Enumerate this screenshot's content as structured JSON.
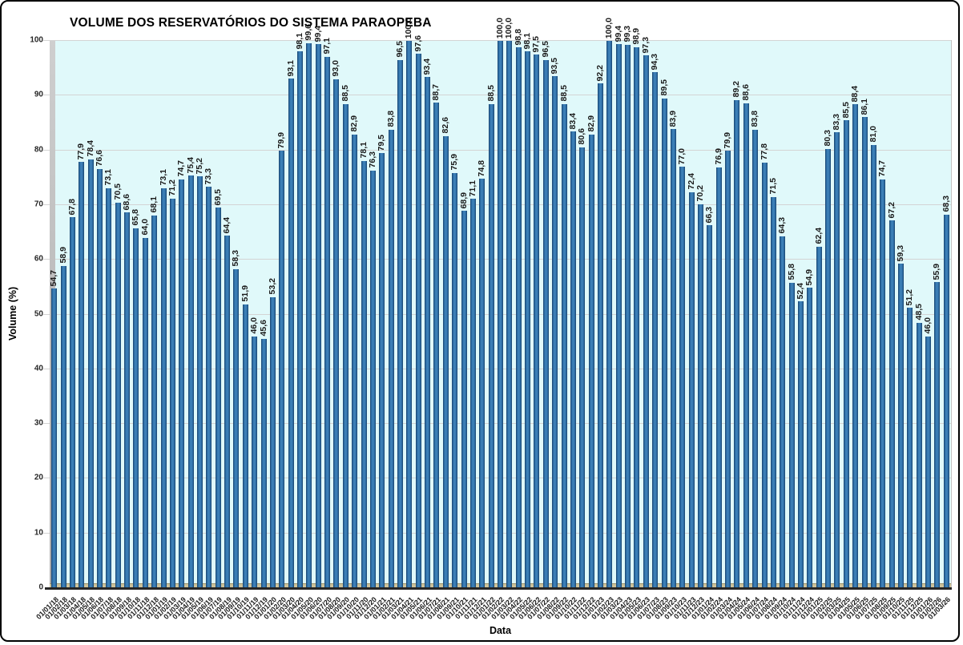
{
  "chart_data": {
    "type": "bar",
    "title": "VOLUME DOS RESERVATÓRIOS DO SISTEMA PARAOPEBA",
    "xlabel": "Data",
    "ylabel": "Volume (%)",
    "ylim": [
      0,
      100
    ],
    "y_ticks": [
      "0",
      "10",
      "20",
      "30",
      "40",
      "50",
      "60",
      "70",
      "80",
      "90",
      "100"
    ],
    "grid": "horizontal",
    "legend": "none",
    "decimal_separator": ",",
    "categories": [
      "01/01/18",
      "01/02/18",
      "01/03/18",
      "01/04/18",
      "01/05/18",
      "01/06/18",
      "01/07/18",
      "01/08/18",
      "01/09/18",
      "01/10/18",
      "01/11/18",
      "01/12/18",
      "01/01/19",
      "01/02/19",
      "01/03/19",
      "01/04/19",
      "01/05/19",
      "01/06/19",
      "01/07/19",
      "01/08/19",
      "01/09/19",
      "01/10/19",
      "01/11/19",
      "01/12/19",
      "01/01/20",
      "01/02/20",
      "01/03/20",
      "01/04/20",
      "01/05/20",
      "01/06/20",
      "01/07/20",
      "01/08/20",
      "01/09/20",
      "01/10/20",
      "01/11/20",
      "01/12/20",
      "01/01/21",
      "01/02/21",
      "01/03/21",
      "01/04/21",
      "01/05/21",
      "01/06/21",
      "01/07/21",
      "01/08/21",
      "01/09/21",
      "01/10/21",
      "01/11/21",
      "01/12/21",
      "01/01/22",
      "01/02/22",
      "01/03/22",
      "01/04/22",
      "01/05/22",
      "01/06/22",
      "01/07/22",
      "01/08/22",
      "01/09/22",
      "01/10/22",
      "01/11/22",
      "01/12/22",
      "01/01/23",
      "01/02/23",
      "01/03/23",
      "01/04/23",
      "01/05/23",
      "01/06/23",
      "01/07/23",
      "01/08/23",
      "01/09/23",
      "01/10/23",
      "01/11/23",
      "01/12/23",
      "01/01/24",
      "01/02/24",
      "01/03/24",
      "01/04/24",
      "01/05/24",
      "01/06/24",
      "01/07/24",
      "01/08/24",
      "01/09/24",
      "01/10/24",
      "01/11/24",
      "01/12/24",
      "01/01/25",
      "01/02/25",
      "01/03/25",
      "01/04/25",
      "01/05/25",
      "01/06/25",
      "01/07/25",
      "01/08/25",
      "01/09/25",
      "01/10/25",
      "01/11/25",
      "01/12/25",
      "01/01/26",
      "01/02/26",
      "01/03/26"
    ],
    "value_labels": [
      "54,7",
      "58,9",
      "67,8",
      "77,9",
      "78,4",
      "76,6",
      "73,1",
      "70,5",
      "68,6",
      "65,8",
      "64,0",
      "68,1",
      "73,1",
      "71,2",
      "74,7",
      "75,4",
      "75,2",
      "73,3",
      "69,5",
      "64,4",
      "58,3",
      "51,9",
      "46,0",
      "45,6",
      "53,2",
      "79,9",
      "93,1",
      "98,1",
      "99,6",
      "99,4",
      "97,1",
      "93,0",
      "88,5",
      "82,9",
      "78,1",
      "76,3",
      "79,5",
      "83,8",
      "96,5",
      "100,0",
      "97,6",
      "93,4",
      "88,7",
      "82,6",
      "75,9",
      "68,9",
      "71,1",
      "74,8",
      "88,5",
      "100,0",
      "100,0",
      "98,8",
      "98,1",
      "97,5",
      "96,5",
      "93,5",
      "88,5",
      "83,4",
      "80,6",
      "82,9",
      "92,2",
      "100,0",
      "99,4",
      "99,3",
      "98,9",
      "97,3",
      "94,3",
      "89,5",
      "83,9",
      "77,0",
      "72,4",
      "70,2",
      "66,3",
      "76,9",
      "79,9",
      "89,2",
      "88,6",
      "83,8",
      "77,8",
      "71,5",
      "64,3",
      "55,8",
      "52,4",
      "54,9",
      "62,4",
      "80,3",
      "83,3",
      "85,5",
      "88,4",
      "86,1",
      "81,0",
      "74,7",
      "67,2",
      "59,3",
      "51,2",
      "48,5",
      "46,0",
      "55,9",
      "68,3"
    ],
    "colors": {
      "bar_fill": "#2C6BA3",
      "bar_edge": "#173F66",
      "plot_background": "#E0F9FA",
      "gridline": "#D4D4D4",
      "floor_3d": "#CDC29A",
      "wall_3d": "#B8B8B8",
      "axis_line": "#262626",
      "text": "#1A1A1A"
    }
  }
}
